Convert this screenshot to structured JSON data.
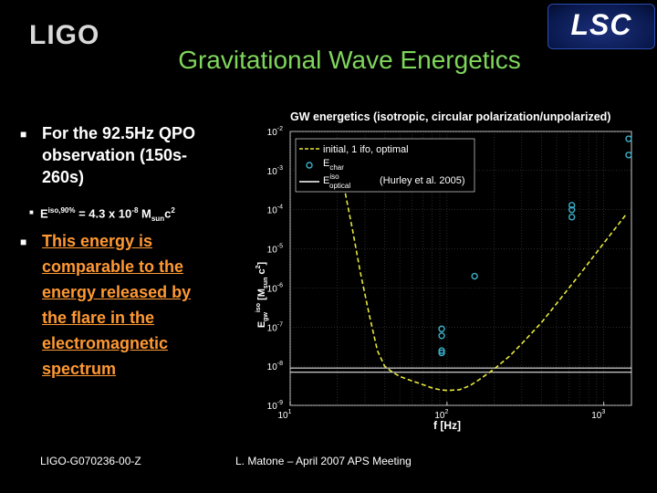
{
  "header": {
    "logo_left": "LIGO",
    "logo_right": "LSC",
    "title": "Gravitational Wave Energetics"
  },
  "bullets": {
    "b1_line1": "For the 92.5Hz QPO",
    "b1_line2": "observation (150s-",
    "b1_line3": "260s)",
    "eq_E": "E",
    "eq_sup": "iso,90%",
    "eq_mid": " = 4.3 x 10",
    "eq_exp": "-8",
    "eq_M": " M",
    "eq_sub": "sun",
    "eq_c": "c",
    "eq_c_exp": "2",
    "b2_line1": "This energy is",
    "b2_line2": "comparable to the",
    "b2_line3": "energy released by",
    "b2_line4": "the flare in the",
    "b2_line5": "electromagnetic",
    "b2_line6": "spectrum"
  },
  "footer": {
    "left": "LIGO-G070236-00-Z",
    "right": "L. Matone – April 2007 APS Meeting"
  },
  "colors": {
    "title": "#7fd65b",
    "bullet2": "#ff9933",
    "curve": "#e8e83a",
    "points": "#3ab0c8"
  },
  "chart_data": {
    "type": "scatter",
    "title": "GW energetics (isotropic, circular polarization/unpolarized)",
    "xlabel": "f [Hz]",
    "ylabel": "E_gw^iso [M_sun c^2]",
    "ylabel_parts": {
      "E": "E",
      "sub": "gw",
      "sup": "iso",
      "rest": " [M",
      "sun": "sun",
      "c": " c",
      "c_exp": "2",
      "close": "]"
    },
    "x_scale": "log",
    "y_scale": "log",
    "xlim": [
      10,
      1500
    ],
    "ylim": [
      1e-09,
      0.01
    ],
    "x_ticks": [
      {
        "value": 10,
        "base": "10",
        "exp": "1"
      },
      {
        "value": 100,
        "base": "10",
        "exp": "2"
      },
      {
        "value": 1000,
        "base": "10",
        "exp": "3"
      }
    ],
    "y_ticks": [
      {
        "value": 0.01,
        "base": "10",
        "exp": "-2"
      },
      {
        "value": 0.001,
        "base": "10",
        "exp": "-3"
      },
      {
        "value": 0.0001,
        "base": "10",
        "exp": "-4"
      },
      {
        "value": 1e-05,
        "base": "10",
        "exp": "-5"
      },
      {
        "value": 1e-06,
        "base": "10",
        "exp": "-6"
      },
      {
        "value": 1e-07,
        "base": "10",
        "exp": "-7"
      },
      {
        "value": 1e-08,
        "base": "10",
        "exp": "-8"
      },
      {
        "value": 1e-09,
        "base": "10",
        "exp": "-9"
      }
    ],
    "legend": {
      "placement": "top-left",
      "entries": [
        {
          "label": "initial, 1 ifo, optimal",
          "style": "dashed"
        },
        {
          "label": "E",
          "sub": "char",
          "style": "circle"
        },
        {
          "label": "E",
          "sup": "iso",
          "sub": "optical",
          "extra": "(Hurley et al. 2005)",
          "style": "line"
        }
      ]
    },
    "sensitivity_curve": {
      "name": "initial, 1 ifo, optimal",
      "x": [
        22,
        25,
        28,
        32,
        36,
        40,
        45,
        50,
        60,
        70,
        80,
        90,
        100,
        120,
        140,
        160,
        200,
        250,
        300,
        400,
        500,
        700,
        1000,
        1400
      ],
      "y": [
        0.0004,
        3e-05,
        2.5e-06,
        2e-07,
        2.5e-08,
        1e-08,
        7e-09,
        5.5e-09,
        4.2e-09,
        3.4e-09,
        2.8e-09,
        2.5e-09,
        2.4e-09,
        2.5e-09,
        3.2e-09,
        4.5e-09,
        8.5e-09,
        1.8e-08,
        3.8e-08,
        1.3e-07,
        4e-07,
        2.2e-06,
        1.4e-05,
        8e-05
      ]
    },
    "char_points": {
      "name": "E_char",
      "x": [
        92.5,
        92.5,
        92.5,
        92.5,
        150,
        625,
        625,
        625,
        1440,
        1440
      ],
      "y": [
        9e-08,
        6e-08,
        2.5e-08,
        2.2e-08,
        2e-06,
        0.00013,
        0.0001,
        6.5e-05,
        0.0065,
        0.0025
      ]
    },
    "optical_lines": {
      "name": "E_optical^iso",
      "y": [
        9e-09,
        7e-09
      ]
    }
  }
}
